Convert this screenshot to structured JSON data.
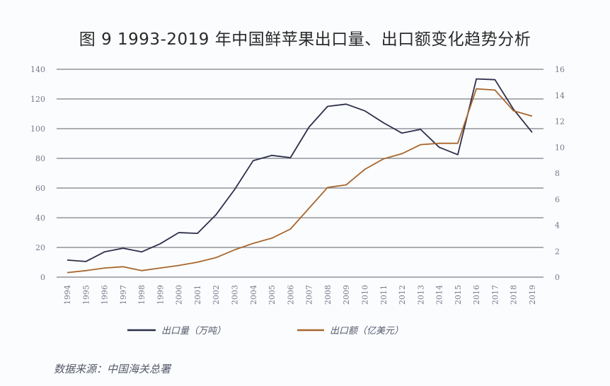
{
  "title": "图 9  1993-2019 年中国鲜苹果出口量、出口额变化趋势分析",
  "source": "数据来源：中国海关总署",
  "colors": {
    "volume": "#2c2f4a",
    "value": "#a8662c",
    "grid": "#7b7e86",
    "tick": "#777a8a"
  },
  "chart_data": {
    "type": "line",
    "title": "1993-2019 年中国鲜苹果出口量、出口额变化趋势分析",
    "x": [
      "1994",
      "1995",
      "1996",
      "1997",
      "1998",
      "1999",
      "2000",
      "2001",
      "2002",
      "2003",
      "2004",
      "2005",
      "2006",
      "2007",
      "2008",
      "2009",
      "2010",
      "2011",
      "2012",
      "2013",
      "2014",
      "2015",
      "2016",
      "2017",
      "2018",
      "2019"
    ],
    "series": [
      {
        "name": "出口量（万吨）",
        "axis": "left",
        "values": [
          11.5,
          10.5,
          17,
          19.5,
          17,
          22.5,
          30,
          29.5,
          42,
          59,
          78.5,
          82,
          80.5,
          101,
          115,
          116.5,
          112,
          104,
          97,
          99.5,
          87.5,
          82.5,
          133.5,
          133,
          113,
          97.5
        ]
      },
      {
        "name": "出口额（亿美元）",
        "axis": "right",
        "values": [
          0.35,
          0.5,
          0.7,
          0.8,
          0.5,
          0.7,
          0.9,
          1.15,
          1.5,
          2.1,
          2.6,
          3.0,
          3.7,
          5.3,
          6.9,
          7.1,
          8.3,
          9.1,
          9.5,
          10.2,
          10.3,
          10.3,
          14.5,
          14.4,
          12.8,
          12.4
        ]
      }
    ],
    "y_left": {
      "ylim": [
        0,
        140
      ],
      "ticks": [
        "0",
        "20",
        "40",
        "60",
        "80",
        "100",
        "120",
        "140"
      ]
    },
    "y_right": {
      "ylim": [
        0,
        16
      ],
      "ticks": [
        "0",
        "2",
        "4",
        "6",
        "8",
        "10",
        "12",
        "14",
        "16"
      ]
    },
    "grid": true,
    "legend": "bottom"
  }
}
